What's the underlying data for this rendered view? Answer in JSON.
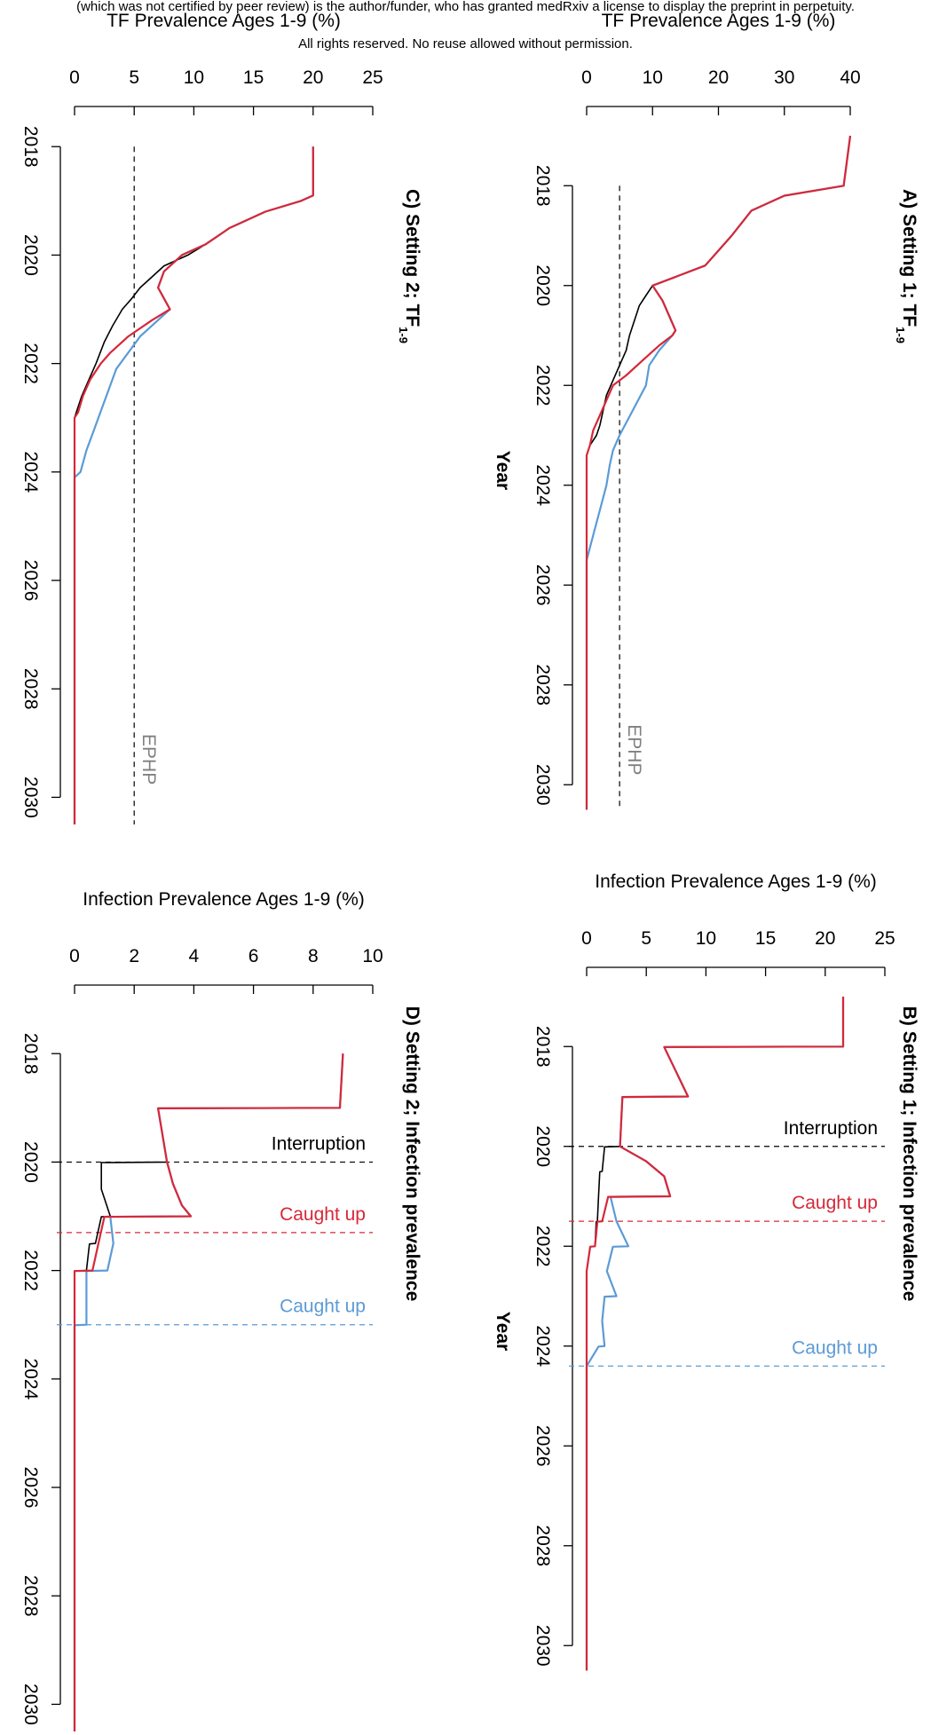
{
  "header": {
    "line1": "(which was not certified by peer review) is the author/funder, who has granted medRxiv a license to display the preprint in perpetuity.",
    "line2": "All rights reserved. No reuse allowed without permission."
  },
  "shared": {
    "year_label": "Year",
    "x_ticks": [
      2018,
      2020,
      2022,
      2024,
      2026,
      2028,
      2030
    ]
  },
  "chart_data": [
    {
      "id": "A",
      "type": "line",
      "title": "A) Setting 1; TF",
      "title_sub": "1-9",
      "ylabel": "TF Prevalence Ages 1-9 (%)",
      "xlabel": "Year",
      "xlim": [
        2017,
        2030.5
      ],
      "ylim": [
        0,
        40
      ],
      "y_ticks": [
        0,
        10,
        20,
        30,
        40
      ],
      "hlines": [
        {
          "y": 5,
          "color": "#000000",
          "label": "EPHP",
          "label_color": "#808080"
        }
      ],
      "series": [
        {
          "color": "#000000",
          "x": [
            2017.0,
            2018.0,
            2018.2,
            2018.5,
            2019.0,
            2019.3,
            2019.6,
            2019.8,
            2020.0,
            2020.2,
            2020.4,
            2020.6,
            2020.8,
            2021.0,
            2021.3,
            2021.6,
            2021.9,
            2022.2,
            2022.5,
            2022.8,
            2023.0,
            2023.2,
            2023.4,
            2030.5
          ],
          "y": [
            40,
            39,
            30,
            25,
            22,
            20,
            18,
            14,
            10,
            9,
            8,
            7.5,
            7,
            6.5,
            6,
            5,
            4,
            3,
            2.5,
            2,
            1.5,
            0.5,
            0,
            0
          ]
        },
        {
          "color": "#5b9bd5",
          "x": [
            2017.0,
            2018.0,
            2018.2,
            2018.5,
            2019.0,
            2019.3,
            2019.6,
            2019.8,
            2020.0,
            2020.3,
            2020.6,
            2020.9,
            2021.0,
            2021.3,
            2021.6,
            2022.0,
            2022.5,
            2023.0,
            2023.3,
            2023.6,
            2024.0,
            2024.5,
            2025.0,
            2025.5,
            2030.5
          ],
          "y": [
            40,
            39,
            30,
            25,
            22,
            20,
            18,
            14,
            10,
            11.5,
            12.5,
            13.5,
            13,
            11,
            9.5,
            9,
            7,
            5,
            4,
            3.5,
            3,
            2,
            1,
            0,
            0
          ]
        },
        {
          "color": "#d62839",
          "x": [
            2017.0,
            2018.0,
            2018.2,
            2018.5,
            2019.0,
            2019.3,
            2019.6,
            2019.8,
            2020.0,
            2020.3,
            2020.6,
            2020.9,
            2021.0,
            2021.2,
            2021.5,
            2021.8,
            2022.0,
            2022.3,
            2022.6,
            2022.9,
            2023.2,
            2023.4,
            2030.5
          ],
          "y": [
            40,
            39,
            30,
            25,
            22,
            20,
            18,
            14,
            10,
            11.5,
            12.5,
            13.5,
            13,
            11,
            8.5,
            6,
            4,
            3,
            2,
            1,
            0.5,
            0,
            0
          ]
        }
      ]
    },
    {
      "id": "B",
      "type": "line",
      "title": "B) Setting 1; Infection prevalence",
      "ylabel": "Infection Prevalence Ages 1-9 (%)",
      "xlabel": "Year",
      "xlim": [
        2017,
        2030.5
      ],
      "ylim": [
        0,
        25
      ],
      "y_ticks": [
        0,
        5,
        10,
        15,
        20,
        25
      ],
      "vlines": [
        {
          "x": 2020.0,
          "color": "#000000",
          "label": "Interruption",
          "label_color": "#000000"
        },
        {
          "x": 2021.5,
          "color": "#d62839",
          "label": "Caught up",
          "label_color": "#d62839"
        },
        {
          "x": 2024.4,
          "color": "#5b9bd5",
          "label": "Caught up",
          "label_color": "#5b9bd5"
        }
      ],
      "series": [
        {
          "color": "#000000",
          "x": [
            2017.0,
            2018.0,
            2018.01,
            2019.0,
            2019.01,
            2020.0,
            2020.01,
            2020.5,
            2020.51,
            2021.0,
            2021.5,
            2021.51,
            2022.0,
            2022.01,
            2022.5,
            2030.5
          ],
          "y": [
            21.5,
            21.5,
            6.5,
            8.5,
            3.0,
            2.8,
            1.5,
            1.3,
            1.1,
            1.0,
            0.9,
            0.8,
            0.7,
            0.3,
            0,
            0
          ]
        },
        {
          "color": "#5b9bd5",
          "x": [
            2017.0,
            2018.0,
            2018.01,
            2019.0,
            2019.01,
            2020.0,
            2020.3,
            2020.6,
            2021.0,
            2021.01,
            2021.5,
            2022.0,
            2022.01,
            2022.5,
            2023.0,
            2023.01,
            2023.5,
            2024.0,
            2024.01,
            2024.4,
            2030.5
          ],
          "y": [
            21.5,
            21.5,
            6.5,
            8.5,
            3.0,
            2.8,
            5.0,
            6.5,
            7.0,
            2.0,
            2.5,
            3.5,
            2.2,
            1.7,
            2.5,
            1.5,
            1.3,
            1.5,
            1.0,
            0,
            0
          ]
        },
        {
          "color": "#d62839",
          "x": [
            2017.0,
            2018.0,
            2018.01,
            2019.0,
            2019.01,
            2020.0,
            2020.3,
            2020.6,
            2021.0,
            2021.01,
            2021.5,
            2021.51,
            2022.0,
            2022.01,
            2022.5,
            2030.5
          ],
          "y": [
            21.5,
            21.5,
            6.5,
            8.5,
            3.0,
            2.8,
            5.0,
            6.5,
            7.0,
            1.8,
            1.3,
            0.9,
            0.7,
            0.3,
            0,
            0
          ]
        }
      ]
    },
    {
      "id": "C",
      "type": "line",
      "title": "C) Setting 2; TF",
      "title_sub": "1-9",
      "ylabel": "TF Prevalence Ages 1-9 (%)",
      "xlabel": "",
      "xlim": [
        2017.8,
        2030.5
      ],
      "ylim": [
        0,
        25
      ],
      "y_ticks": [
        0,
        5,
        10,
        15,
        20,
        25
      ],
      "hlines": [
        {
          "y": 5,
          "color": "#000000",
          "label": "EPHP",
          "label_color": "#808080"
        }
      ],
      "series": [
        {
          "color": "#000000",
          "x": [
            2018.0,
            2018.9,
            2019.0,
            2019.2,
            2019.5,
            2019.8,
            2020.0,
            2020.2,
            2020.4,
            2020.6,
            2020.8,
            2021.0,
            2021.3,
            2021.6,
            2022.0,
            2022.3,
            2022.6,
            2022.8,
            2023.0,
            2030.5
          ],
          "y": [
            20,
            20,
            19,
            16,
            13,
            11,
            9.5,
            7.5,
            6.5,
            5.5,
            4.8,
            4,
            3.2,
            2.5,
            1.8,
            1.2,
            0.6,
            0.3,
            0,
            0
          ]
        },
        {
          "color": "#5b9bd5",
          "x": [
            2018.0,
            2018.9,
            2019.0,
            2019.2,
            2019.5,
            2019.8,
            2020.0,
            2020.3,
            2020.6,
            2020.8,
            2021.0,
            2021.2,
            2021.5,
            2021.8,
            2022.1,
            2022.4,
            2022.7,
            2023.0,
            2023.3,
            2023.6,
            2024.0,
            2024.1,
            2030.5
          ],
          "y": [
            20,
            20,
            19,
            16,
            13,
            11,
            9,
            7.5,
            7.0,
            7.5,
            8.0,
            7,
            5.5,
            4.5,
            3.5,
            3,
            2.5,
            2,
            1.5,
            1,
            0.5,
            0,
            0
          ]
        },
        {
          "color": "#d62839",
          "x": [
            2018.0,
            2018.9,
            2019.0,
            2019.2,
            2019.5,
            2019.8,
            2020.0,
            2020.3,
            2020.6,
            2020.8,
            2021.0,
            2021.2,
            2021.5,
            2021.8,
            2022.0,
            2022.3,
            2022.6,
            2022.9,
            2023.0,
            2030.5
          ],
          "y": [
            20,
            20,
            19,
            16,
            13,
            11,
            9,
            7.5,
            7.0,
            7.5,
            8.0,
            6.5,
            4.5,
            3.0,
            2.2,
            1.3,
            0.7,
            0.3,
            0,
            0
          ]
        }
      ]
    },
    {
      "id": "D",
      "type": "line",
      "title": "D) Setting 2; Infection prevalence",
      "ylabel": "Infection Prevalence Ages 1-9 (%)",
      "xlabel": "",
      "xlim": [
        2017.8,
        2030.5
      ],
      "ylim": [
        0,
        10
      ],
      "y_ticks": [
        0,
        2,
        4,
        6,
        8,
        10
      ],
      "vlines": [
        {
          "x": 2020.0,
          "color": "#000000",
          "label": "Interruption",
          "label_color": "#000000"
        },
        {
          "x": 2021.3,
          "color": "#d62839",
          "label": "Caught up",
          "label_color": "#d62839"
        },
        {
          "x": 2023.0,
          "color": "#5b9bd5",
          "label": "Caught up",
          "label_color": "#5b9bd5"
        }
      ],
      "series": [
        {
          "color": "#000000",
          "x": [
            2018.0,
            2019.0,
            2019.01,
            2020.0,
            2020.01,
            2020.5,
            2021.0,
            2021.01,
            2021.5,
            2021.51,
            2022.0,
            2022.01,
            2022.5,
            2030.5
          ],
          "y": [
            9.0,
            8.9,
            2.8,
            3.1,
            0.9,
            0.9,
            1.2,
            0.9,
            0.7,
            0.5,
            0.4,
            0,
            0,
            0
          ]
        },
        {
          "color": "#5b9bd5",
          "x": [
            2018.0,
            2019.0,
            2019.01,
            2020.0,
            2020.4,
            2020.8,
            2021.0,
            2021.01,
            2021.5,
            2022.0,
            2022.01,
            2023.0,
            2023.01,
            2030.5
          ],
          "y": [
            9.0,
            8.9,
            2.8,
            3.1,
            3.3,
            3.6,
            3.9,
            1.2,
            1.3,
            1.1,
            0.4,
            0.4,
            0,
            0
          ]
        },
        {
          "color": "#d62839",
          "x": [
            2018.0,
            2019.0,
            2019.01,
            2020.0,
            2020.4,
            2020.8,
            2021.0,
            2021.01,
            2021.5,
            2022.0,
            2022.01,
            2030.5
          ],
          "y": [
            9.0,
            8.9,
            2.8,
            3.1,
            3.3,
            3.6,
            3.9,
            1.0,
            0.8,
            0.6,
            0,
            0
          ]
        }
      ]
    }
  ]
}
